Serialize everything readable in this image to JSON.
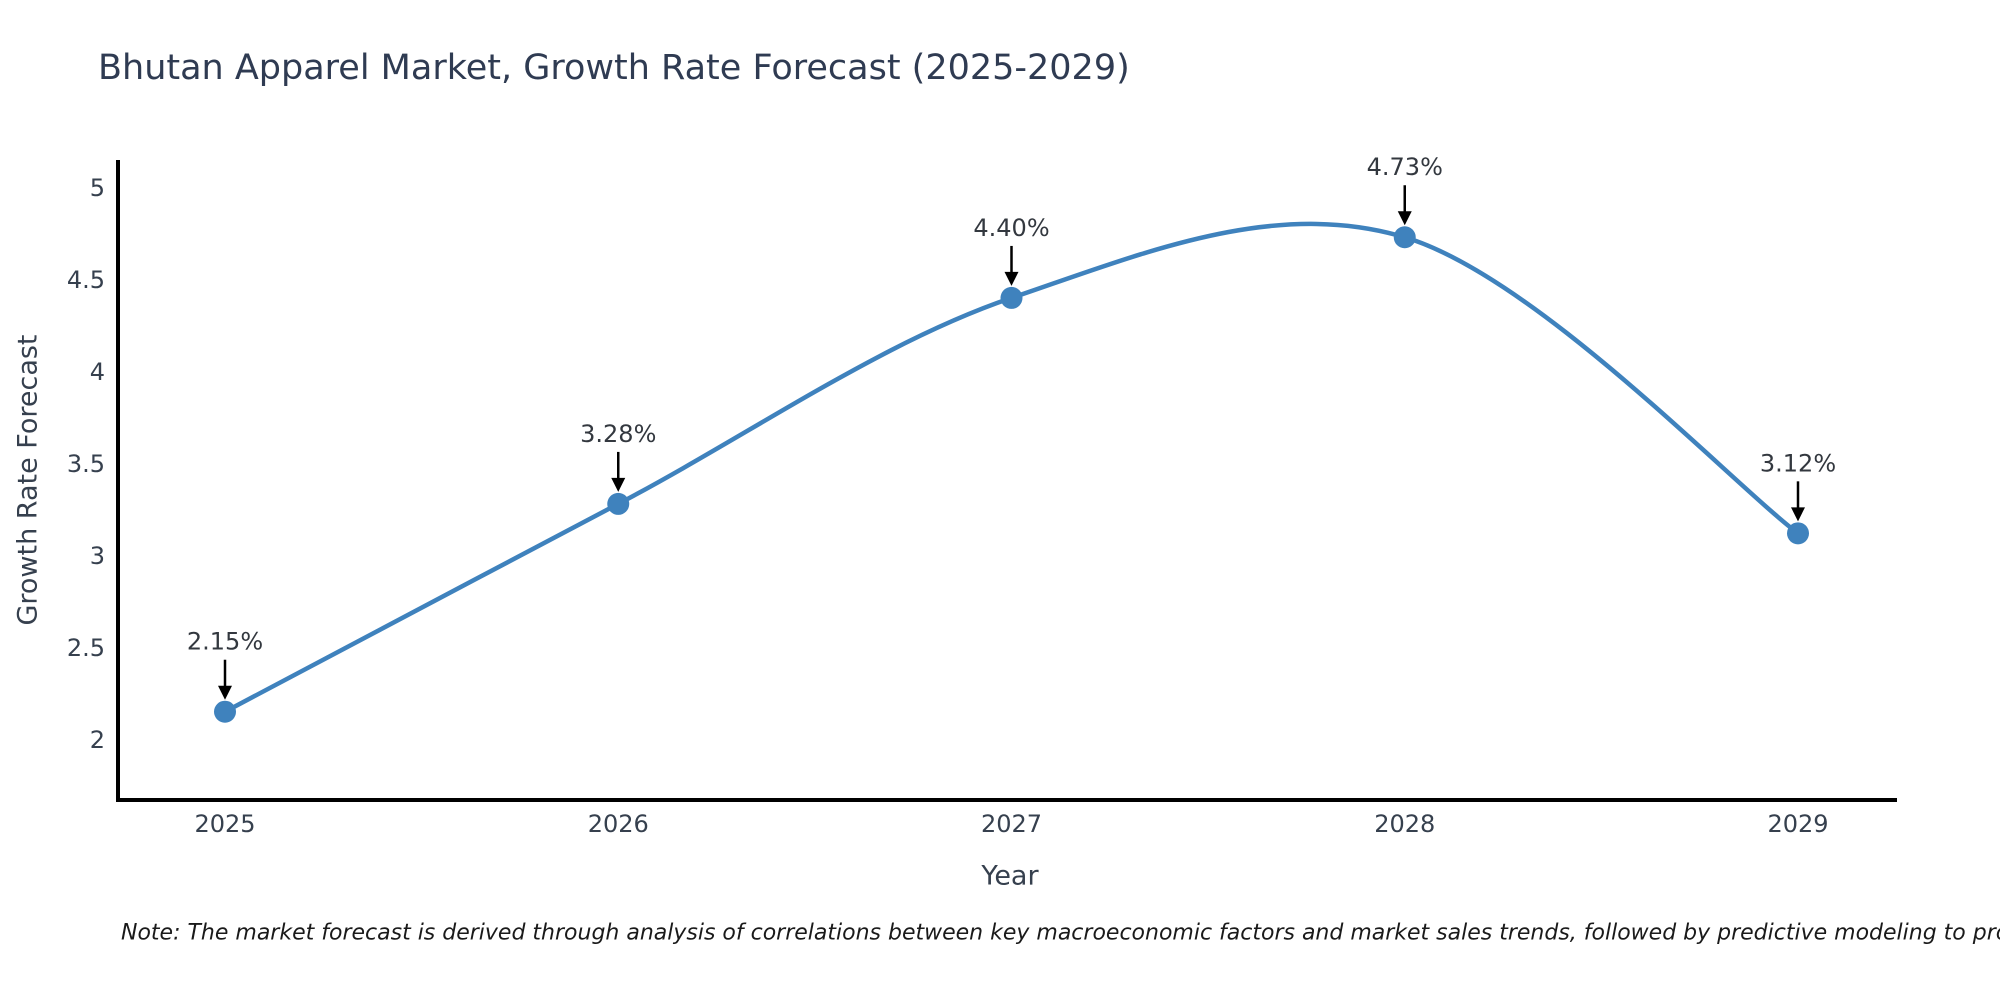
{
  "page": {
    "note": "Note: The market forecast is derived through analysis of correlations between key macroeconomic factors and market sales trends, followed by predictive modeling to project future sales"
  },
  "chart_data": {
    "type": "line",
    "title": "Bhutan Apparel Market, Growth Rate Forecast (2025-2029)",
    "xlabel": "Year",
    "ylabel": "Growth Rate Forecast",
    "categories": [
      "2025",
      "2026",
      "2027",
      "2028",
      "2029"
    ],
    "values": [
      2.15,
      3.28,
      4.4,
      4.73,
      3.12
    ],
    "point_labels": [
      "2.15%",
      "3.28%",
      "4.40%",
      "4.73%",
      "3.12%"
    ],
    "series_name": "Growth Rate Forecast",
    "y_ticks": [
      2,
      2.5,
      3,
      3.5,
      4,
      4.5,
      5
    ],
    "y_tick_labels": [
      "2",
      "2.5",
      "3",
      "3.5",
      "4",
      "4.5",
      "5"
    ],
    "ylim": [
      1.67,
      5.15
    ],
    "grid": false,
    "legend_position": "none",
    "line_smooth": true,
    "annotations_arrow": true,
    "colors": {
      "line": "#3f82bd",
      "marker": "#3f82bd",
      "axis": "#000000",
      "tick_label": "#36404e",
      "title": "#2f3b52",
      "annotation_text": "#33383f",
      "arrow": "#000000",
      "background": "#ffffff"
    }
  }
}
